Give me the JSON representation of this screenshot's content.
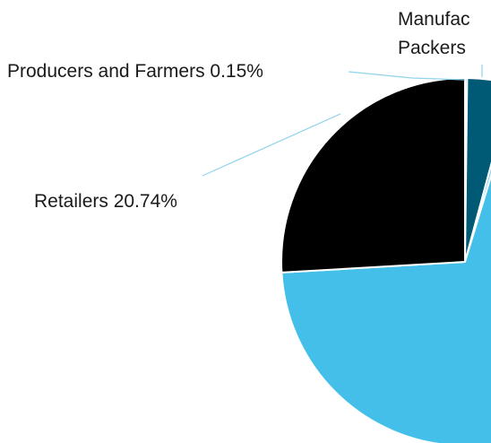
{
  "chart_data": {
    "type": "pie",
    "slices": [
      {
        "label": "Producers and Farmers",
        "value": 0.15,
        "value_label": "0.15%",
        "color": "#6cc6e4"
      },
      {
        "label": "Manufac… Packers",
        "value": 3.2,
        "value_label": "",
        "color": "#005a75"
      },
      {
        "label": "",
        "value": 0.4,
        "value_label": "",
        "color": "#7fd0ee"
      },
      {
        "label": "",
        "value": 55.51,
        "value_label": "",
        "color": "#43bfea"
      },
      {
        "label": "Retailers",
        "value": 20.74,
        "value_label": "20.74%",
        "color": "#000000"
      }
    ],
    "labels": {
      "producers": "Producers and Farmers 0.15%",
      "manufac_line1": "Manufac",
      "manufac_line2": "Packers",
      "retailers": "Retailers 20.74%"
    },
    "leader_color": "#8fd3ec",
    "slice_border_color": "#ffffff"
  }
}
